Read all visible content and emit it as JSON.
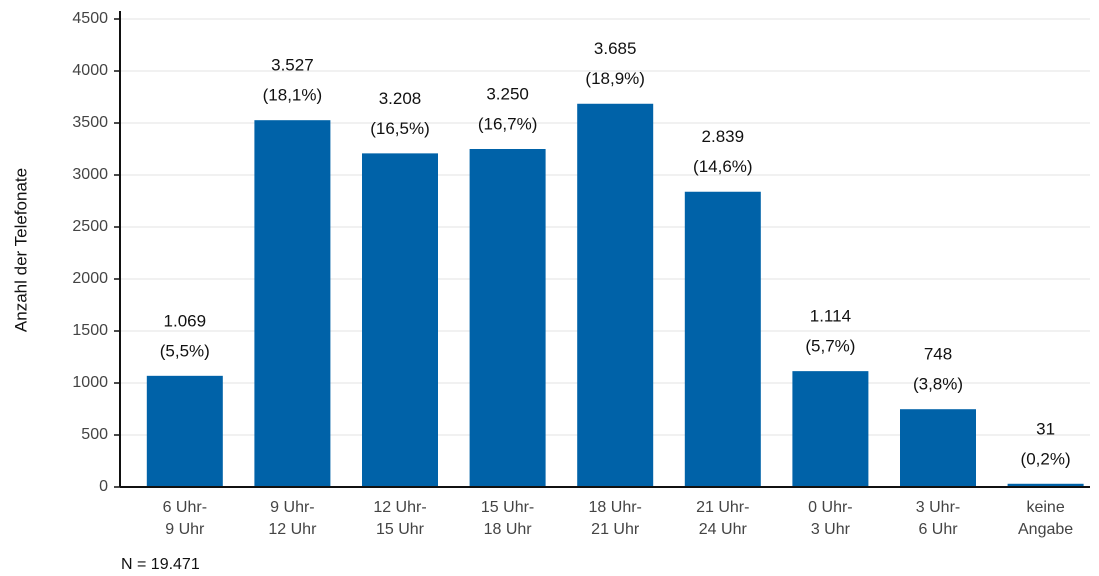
{
  "chart_data": {
    "type": "bar",
    "y_label": "Anzahl der Telefonate",
    "annotation": "N = 19.471",
    "categories": [
      [
        "6 Uhr-",
        "9 Uhr"
      ],
      [
        "9 Uhr-",
        "12 Uhr"
      ],
      [
        "12 Uhr-",
        "15 Uhr"
      ],
      [
        "15 Uhr-",
        "18 Uhr"
      ],
      [
        "18 Uhr-",
        "21 Uhr"
      ],
      [
        "21 Uhr-",
        "24 Uhr"
      ],
      [
        "0 Uhr-",
        "3 Uhr"
      ],
      [
        "3 Uhr-",
        "6 Uhr"
      ],
      [
        "keine",
        "Angabe"
      ]
    ],
    "values": [
      1069,
      3527,
      3208,
      3250,
      3685,
      2839,
      1114,
      748,
      31
    ],
    "value_labels": [
      [
        "1.069",
        "(5,5%)"
      ],
      [
        "3.527",
        "(18,1%)"
      ],
      [
        "3.208",
        "(16,5%)"
      ],
      [
        "3.250",
        "(16,7%)"
      ],
      [
        "3.685",
        "(18,9%)"
      ],
      [
        "2.839",
        "(14,6%)"
      ],
      [
        "1.114",
        "(5,7%)"
      ],
      [
        "748",
        "(3,8%)"
      ],
      [
        "31",
        "(0,2%)"
      ]
    ],
    "color": "#0062a8",
    "ylim": [
      0,
      4500
    ],
    "yticks": [
      0,
      500,
      1000,
      1500,
      2000,
      2500,
      3000,
      3500,
      4000,
      4500
    ],
    "grid": true
  }
}
